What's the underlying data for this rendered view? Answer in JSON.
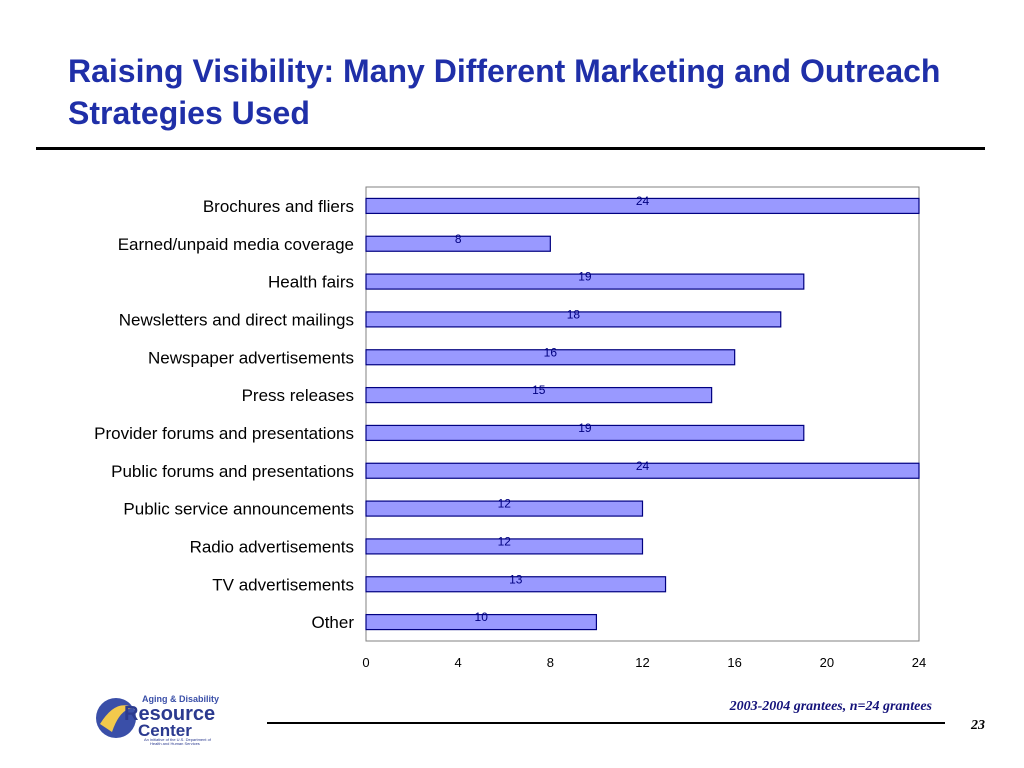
{
  "slide": {
    "title": "Raising Visibility: Many Different Marketing and Outreach Strategies Used",
    "footnote": "2003-2004 grantees, n=24 grantees",
    "page_number": "23"
  },
  "logo": {
    "line1": "Aging & Disability",
    "line2": "Resource",
    "line3": "Center",
    "tagline1": "An initiative of the U.S. Department of",
    "tagline2": "Health and Human Services"
  },
  "colors": {
    "title": "#1f2fa8",
    "bar_fill": "#9999ff",
    "bar_stroke": "#000080",
    "footnote": "#14127a"
  },
  "chart_data": {
    "type": "bar",
    "orientation": "horizontal",
    "categories": [
      "Brochures and fliers",
      "Earned/unpaid media coverage",
      "Health fairs",
      "Newsletters and direct mailings",
      "Newspaper advertisements",
      "Press releases",
      "Provider forums and presentations",
      "Public forums and presentations",
      "Public service announcements",
      "Radio advertisements",
      "TV advertisements",
      "Other"
    ],
    "values": [
      24,
      8,
      19,
      18,
      16,
      15,
      19,
      24,
      12,
      12,
      13,
      10
    ],
    "xlim": [
      0,
      24
    ],
    "xticks": [
      0,
      4,
      8,
      12,
      16,
      20,
      24
    ],
    "grid": false,
    "legend": "none"
  }
}
